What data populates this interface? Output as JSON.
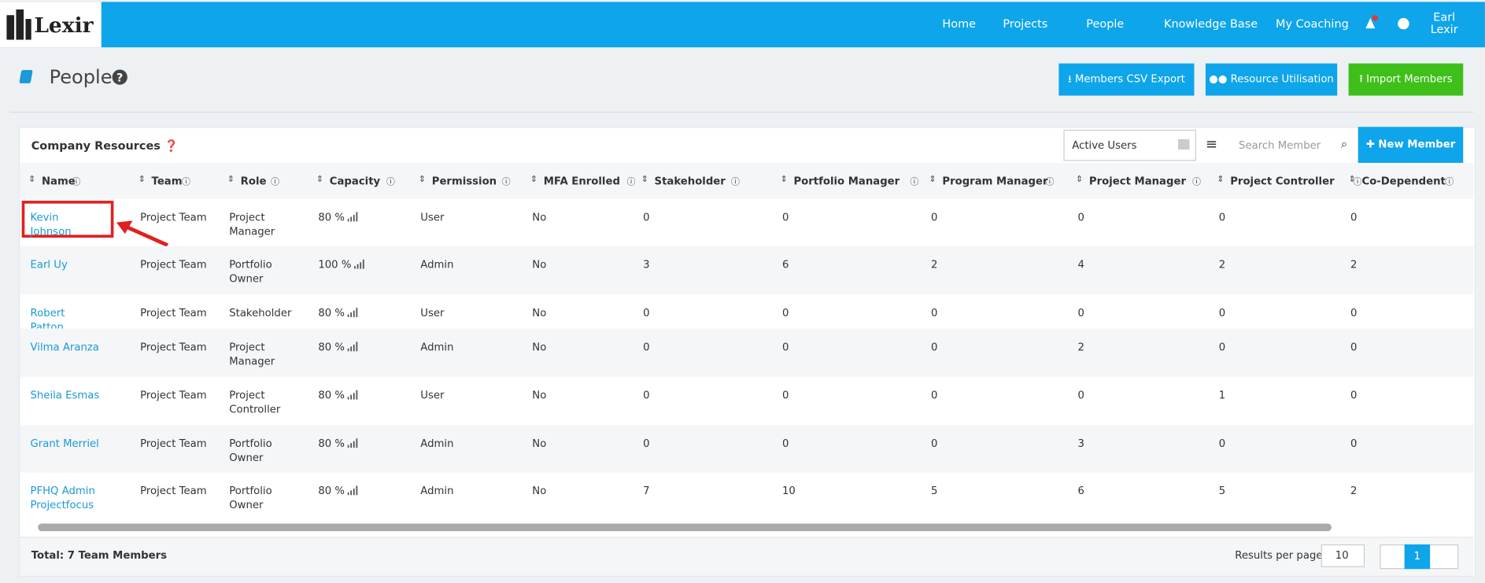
{
  "nav": {
    "logo": "Lexir",
    "items": [
      "Home",
      "Projects",
      "People",
      "Knowledge Base",
      "My Coaching"
    ],
    "user": "Earl Lexir"
  },
  "header": {
    "title": "People",
    "buttons": [
      "Members CSV Export",
      "Resource Utilisation",
      "Import Members"
    ]
  },
  "card": {
    "title": "Company Resources",
    "filter": "Active Users",
    "search_placeholder": "Search Member",
    "new_button": "New Member"
  },
  "table": {
    "columns": [
      "Name",
      "Team",
      "Role",
      "Capacity",
      "Permission",
      "MFA Enrolled",
      "Stakeholder",
      "Portfolio Manager",
      "Program Manager",
      "Project Manager",
      "Project Controller",
      "Co-Dependent"
    ],
    "rows": [
      [
        "Kevin Johnson",
        "Project Team",
        "Project Manager",
        "80 %",
        "User",
        "No",
        0,
        0,
        0,
        0,
        0,
        0
      ],
      [
        "Earl Uy",
        "Project Team",
        "Portfolio Owner",
        "100 %",
        "Admin",
        "No",
        3,
        6,
        2,
        4,
        2,
        2
      ],
      [
        "Robert Patton",
        "Project Team",
        "Stakeholder",
        "80 %",
        "User",
        "No",
        0,
        0,
        0,
        0,
        0,
        0
      ],
      [
        "Vilma Aranza",
        "Project Team",
        "Project Manager",
        "80 %",
        "Admin",
        "No",
        0,
        0,
        0,
        2,
        0,
        0
      ],
      [
        "Sheila Esmas",
        "Project Team",
        "Project Controller",
        "80 %",
        "User",
        "No",
        0,
        0,
        0,
        0,
        1,
        0
      ],
      [
        "Grant Merriel",
        "Project Team",
        "Portfolio Owner",
        "80 %",
        "Admin",
        "No",
        0,
        0,
        0,
        3,
        0,
        0
      ],
      [
        "PFHQ Admin Projectfocus",
        "Project Team",
        "Portfolio Owner",
        "80 %",
        "Admin",
        "No",
        7,
        10,
        5,
        6,
        5,
        2
      ]
    ]
  },
  "footer": {
    "total": "Total: 7 Team Members",
    "results_label": "Results per page:",
    "per_page": "10",
    "page": "1"
  }
}
